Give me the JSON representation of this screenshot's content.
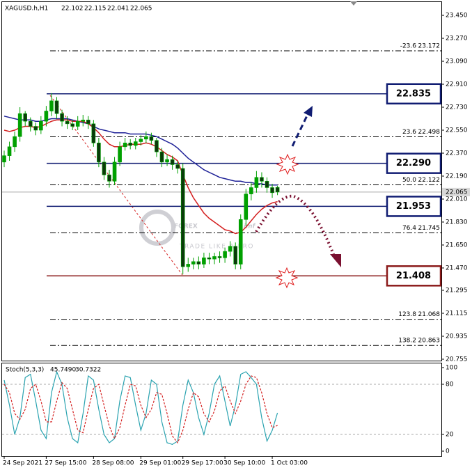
{
  "chart_data": [
    {
      "type": "candlestick",
      "title": "XAGUSD.h,H1",
      "categories": [
        "24 Sep 2021",
        null,
        null,
        null,
        null,
        null,
        null,
        null,
        "27 Sep 15:00",
        null,
        null,
        null,
        null,
        null,
        null,
        null,
        null,
        "28 Sep 08:00",
        null,
        null,
        null,
        null,
        null,
        null,
        null,
        null,
        "29 Sep 01:00",
        null,
        null,
        null,
        null,
        null,
        null,
        null,
        "29 Sep 17:00",
        null,
        null,
        null,
        null,
        null,
        null,
        null,
        "30 Sep 10:00",
        null,
        null,
        null,
        null,
        null,
        null,
        null,
        null,
        "1 Oct 03:00",
        null
      ],
      "open": [
        22.3,
        22.35,
        22.42,
        22.5,
        22.68,
        22.62,
        22.58,
        22.55,
        22.62,
        22.7,
        22.78,
        22.68,
        22.62,
        22.6,
        22.58,
        22.62,
        22.63,
        22.6,
        22.45,
        22.3,
        22.2,
        22.15,
        22.3,
        22.42,
        22.45,
        22.43,
        22.46,
        22.48,
        22.5,
        22.47,
        22.38,
        22.3,
        22.32,
        22.28,
        22.25,
        21.48,
        21.5,
        21.52,
        21.5,
        21.55,
        21.54,
        21.56,
        21.55,
        21.6,
        21.64,
        21.5,
        21.85,
        22.05,
        22.1,
        22.18,
        22.15,
        22.1,
        22.102
      ],
      "high": [
        22.39,
        22.46,
        22.54,
        22.73,
        22.7,
        22.65,
        22.61,
        22.66,
        22.74,
        22.84,
        22.81,
        22.71,
        22.66,
        22.63,
        22.66,
        22.67,
        22.66,
        22.63,
        22.49,
        22.34,
        22.24,
        22.34,
        22.46,
        22.49,
        22.48,
        22.49,
        22.51,
        22.54,
        22.53,
        22.49,
        22.41,
        22.36,
        22.35,
        22.31,
        22.29,
        21.55,
        21.55,
        21.56,
        21.59,
        21.59,
        21.59,
        21.6,
        21.63,
        21.68,
        21.67,
        21.89,
        22.09,
        22.14,
        22.23,
        22.22,
        22.18,
        22.13,
        22.115
      ],
      "low": [
        22.26,
        22.31,
        22.38,
        22.46,
        22.58,
        22.54,
        22.51,
        22.52,
        22.58,
        22.66,
        22.64,
        22.58,
        22.56,
        22.55,
        22.55,
        22.58,
        22.56,
        22.42,
        22.26,
        22.16,
        22.1,
        22.12,
        22.27,
        22.39,
        22.4,
        22.4,
        22.43,
        22.45,
        22.44,
        22.34,
        22.26,
        22.27,
        22.24,
        22.21,
        21.42,
        21.44,
        21.46,
        21.46,
        21.47,
        21.5,
        21.5,
        21.51,
        21.51,
        21.56,
        21.46,
        21.46,
        21.8,
        22.0,
        22.06,
        22.1,
        22.06,
        22.02,
        22.041
      ],
      "close": [
        22.35,
        22.42,
        22.5,
        22.68,
        22.62,
        22.58,
        22.55,
        22.62,
        22.7,
        22.78,
        22.68,
        22.62,
        22.6,
        22.58,
        22.62,
        22.63,
        22.6,
        22.45,
        22.3,
        22.2,
        22.15,
        22.3,
        22.42,
        22.45,
        22.43,
        22.46,
        22.48,
        22.5,
        22.47,
        22.38,
        22.3,
        22.32,
        22.28,
        22.25,
        21.48,
        21.5,
        21.52,
        21.5,
        21.55,
        21.54,
        21.56,
        21.55,
        21.6,
        21.64,
        21.5,
        21.85,
        22.05,
        22.1,
        22.18,
        22.15,
        22.1,
        22.06,
        22.065
      ],
      "up_color": "#00a000",
      "down_color": "#0a3a0a",
      "series": [
        {
          "color": "#1c1f96",
          "values": [
            22.66,
            22.65,
            22.64,
            22.63,
            22.63,
            22.63,
            22.62,
            22.62,
            22.63,
            22.64,
            22.64,
            22.64,
            22.64,
            22.63,
            22.62,
            22.61,
            22.6,
            22.58,
            22.56,
            22.55,
            22.54,
            22.53,
            22.53,
            22.53,
            22.52,
            22.52,
            22.52,
            22.52,
            22.51,
            22.5,
            22.48,
            22.46,
            22.44,
            22.41,
            22.37,
            22.33,
            22.3,
            22.27,
            22.24,
            22.22,
            22.2,
            22.18,
            22.17,
            22.16,
            22.15,
            22.15,
            22.14,
            22.14,
            22.13,
            22.13,
            22.12,
            22.12,
            22.12
          ]
        },
        {
          "color": "#d42020",
          "values": [
            22.55,
            22.54,
            22.55,
            22.57,
            22.58,
            22.58,
            22.57,
            22.58,
            22.6,
            22.62,
            22.63,
            22.63,
            22.63,
            22.62,
            22.62,
            22.62,
            22.6,
            22.57,
            22.53,
            22.48,
            22.44,
            22.42,
            22.42,
            22.43,
            22.44,
            22.44,
            22.44,
            22.45,
            22.44,
            22.42,
            22.39,
            22.36,
            22.34,
            22.31,
            22.2,
            22.1,
            22.02,
            21.96,
            21.9,
            21.86,
            21.83,
            21.8,
            21.77,
            21.76,
            21.74,
            21.75,
            21.79,
            21.84,
            21.89,
            21.93,
            21.96,
            21.98,
            21.99
          ]
        }
      ],
      "ylim": [
        20.744,
        23.543
      ],
      "yticks": [
        {
          "value": 23.45,
          "label": "23.450"
        },
        {
          "value": 23.27,
          "label": "23.270"
        },
        {
          "value": 23.09,
          "label": "23.090"
        },
        {
          "value": 22.91,
          "label": "22.910"
        },
        {
          "value": 22.73,
          "label": "22.730"
        },
        {
          "value": 22.55,
          "label": "22.550"
        },
        {
          "value": 22.37,
          "label": "22.370"
        },
        {
          "value": 22.19,
          "label": "22.190"
        },
        {
          "value": 22.01,
          "label": "22.010"
        },
        {
          "value": 21.83,
          "label": "21.830"
        },
        {
          "value": 21.65,
          "label": "21.650"
        },
        {
          "value": 21.47,
          "label": "21.470"
        },
        {
          "value": 21.295,
          "label": "21.295"
        },
        {
          "value": 21.115,
          "label": "21.115"
        },
        {
          "value": 20.935,
          "label": "20.935"
        },
        {
          "value": 20.755,
          "label": "20.755"
        }
      ],
      "key_levels": [
        {
          "price": 22.835,
          "color": "#101c72"
        },
        {
          "price": {
            "value": 22.29,
            "label": "22.290"
          },
          "color": "#101c72"
        },
        {
          "price": 21.953,
          "color": "#101c72"
        },
        {
          "price": 21.408,
          "color": "#8b1a1a"
        }
      ],
      "fib_levels": [
        {
          "ratio": "-23.6",
          "price": 23.172
        },
        {
          "ratio": "23.6",
          "price": 22.498
        },
        {
          "ratio": "50.0",
          "price": 22.122
        },
        {
          "ratio": "76.4",
          "price": 21.745
        },
        {
          "ratio": "123.8",
          "price": 21.068
        },
        {
          "ratio": "138.2",
          "price": 20.863
        }
      ],
      "watermark": {
        "brand": "FOREX",
        "suffix": "imf",
        "slogan": "TRADE LIKE A PRO"
      }
    },
    {
      "type": "line",
      "title": "Stoch(5,3,3)",
      "header_values": [
        {
          "value": 45.749,
          "label": "45.7490"
        },
        30.7322
      ],
      "series": [
        {
          "color": "#2aa3b0",
          "values": [
            85,
            55,
            20,
            40,
            88,
            92,
            60,
            25,
            15,
            70,
            95,
            80,
            40,
            15,
            10,
            45,
            90,
            85,
            50,
            20,
            10,
            15,
            60,
            90,
            88,
            55,
            25,
            45,
            85,
            80,
            35,
            10,
            8,
            12,
            55,
            85,
            70,
            40,
            20,
            45,
            80,
            90,
            60,
            30,
            55,
            92,
            95,
            88,
            80,
            40,
            12,
            25,
            45.749
          ]
        },
        {
          "color": "#d42020",
          "dashed": true,
          "values": [
            80,
            70,
            45,
            38,
            50,
            75,
            80,
            60,
            35,
            35,
            60,
            82,
            75,
            50,
            25,
            22,
            50,
            75,
            80,
            55,
            30,
            15,
            28,
            55,
            80,
            78,
            55,
            40,
            50,
            70,
            68,
            45,
            18,
            10,
            25,
            50,
            70,
            65,
            45,
            35,
            48,
            72,
            78,
            60,
            45,
            60,
            80,
            90,
            88,
            70,
            45,
            28,
            30.7322
          ]
        }
      ],
      "ylim": [
        -5.8,
        105
      ],
      "yticks": [
        100,
        80,
        20,
        0
      ]
    }
  ]
}
